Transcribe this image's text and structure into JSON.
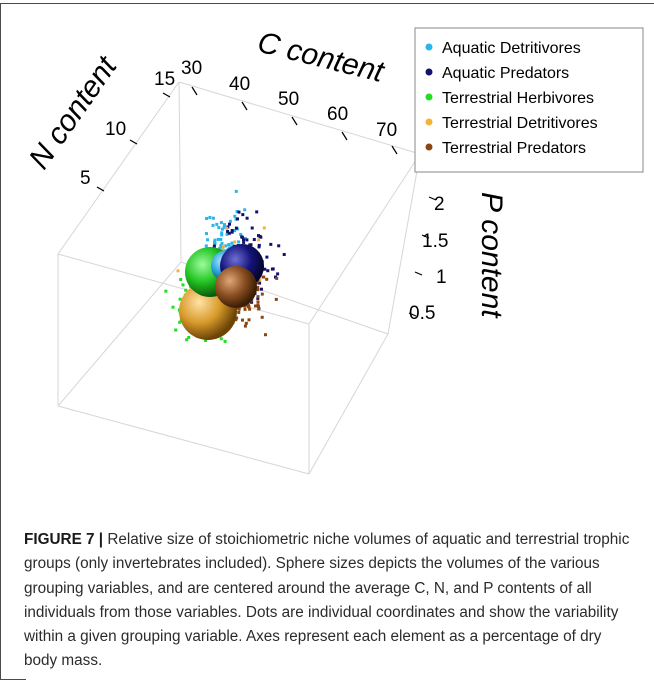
{
  "caption": {
    "label": "FIGURE 7 |",
    "text": "Relative size of stoichiometric niche volumes of aquatic and terrestrial trophic groups (only invertebrates included). Sphere sizes depicts the volumes of the various grouping variables, and are centered around the average C, N, and P contents of all individuals from those variables. Dots are individual coordinates and show the variability within a given grouping variable. Axes represent each element as a percentage of dry body mass."
  },
  "chart_data": {
    "type": "scatter3d",
    "axes": {
      "x": {
        "label": "C content",
        "ticks": [
          "30",
          "40",
          "50",
          "60",
          "70"
        ]
      },
      "y": {
        "label": "N content",
        "ticks": [
          "5",
          "10",
          "15"
        ]
      },
      "z": {
        "label": "P content",
        "ticks": [
          "0.5",
          "1",
          "1.5",
          "2"
        ]
      }
    },
    "legend": {
      "position": "top-right",
      "entries": [
        {
          "name": "Aquatic Detritivores",
          "color": "#29b6ea"
        },
        {
          "name": "Aquatic Predators",
          "color": "#12126e"
        },
        {
          "name": "Terrestrial Herbivores",
          "color": "#22dd22"
        },
        {
          "name": "Terrestrial Detritivores",
          "color": "#f4b338"
        },
        {
          "name": "Terrestrial Predators",
          "color": "#8b4513"
        }
      ]
    },
    "centroids": [
      {
        "group": "Aquatic Detritivores",
        "C": 42,
        "N": 11,
        "P": 1.0
      },
      {
        "group": "Aquatic Predators",
        "C": 45,
        "N": 11.5,
        "P": 1.1
      },
      {
        "group": "Terrestrial Herbivores",
        "C": 44,
        "N": 9,
        "P": 1.0
      },
      {
        "group": "Terrestrial Detritivores",
        "C": 43,
        "N": 8,
        "P": 0.6
      },
      {
        "group": "Terrestrial Predators",
        "C": 48,
        "N": 11,
        "P": 0.9
      }
    ]
  }
}
